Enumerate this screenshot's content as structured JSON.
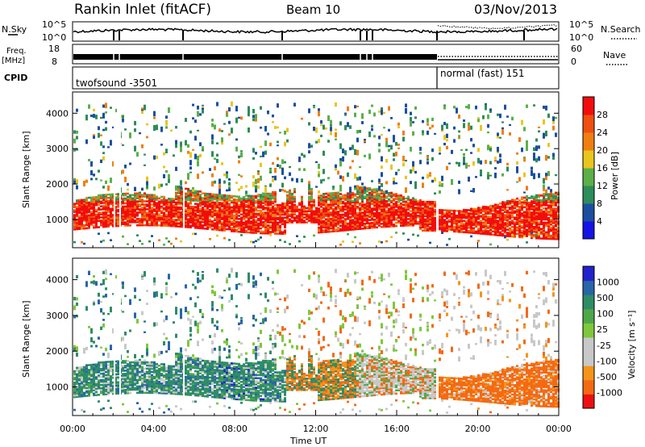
{
  "header": {
    "station": "Rankin Inlet (fitACF)",
    "beam": "Beam 10",
    "date": "03/Nov/2013"
  },
  "top_panels": {
    "nsky_label": "N.Sky",
    "nsky_ticks": [
      "10^5",
      "10^0"
    ],
    "nsearch_label": "N.Search",
    "nsearch_ticks": [
      "10^5",
      "10^0"
    ],
    "freq_label": "Freq.",
    "freq_unit": "[MHz]",
    "freq_ticks": [
      "18",
      "8"
    ],
    "nave_label": "Nave",
    "nave_ticks": [
      "60",
      "0"
    ],
    "cpid_label": "CPID",
    "cpid_left": "twofsound -3501",
    "cpid_right": "normal (fast) 151"
  },
  "colors": {
    "power": [
      "#1414e6",
      "#1c4fa0",
      "#2e8d5a",
      "#5bb04a",
      "#e8c61e",
      "#f07f12",
      "#ef4f10",
      "#f20d0d"
    ],
    "velocity": [
      "#ee1010",
      "#f46a13",
      "#f5941a",
      "#c8c8c8",
      "#c8c8c8",
      "#7fc83a",
      "#4ea84a",
      "#2e8d66",
      "#2866a8",
      "#2222cc"
    ],
    "groundscatter": "#c8c8c8"
  },
  "chart_data": [
    {
      "type": "heatmap",
      "title": "Power",
      "xlabel": "",
      "ylabel": "Slant Range [km]",
      "x_ticks": [
        "00:00",
        "04:00",
        "08:00",
        "12:00",
        "16:00",
        "20:00",
        "00:00"
      ],
      "x_range_hours": [
        0,
        24
      ],
      "y_ticks": [
        1000,
        2000,
        3000,
        4000
      ],
      "ylim": [
        200,
        4600
      ],
      "colorbar": {
        "label": "Power [dB]",
        "ticks": [
          "4",
          "8",
          "12",
          "16",
          "20",
          "24",
          "28"
        ],
        "range": [
          0,
          32
        ]
      },
      "description_values": "Strong red/orange echoes (24-30 dB) between 700-1700 km slant range across most of the day, weaker green/blue scatter from 1800-4300 km"
    },
    {
      "type": "heatmap",
      "title": "Velocity",
      "xlabel": "Time UT",
      "ylabel": "Slant Range [km]",
      "x_ticks": [
        "00:00",
        "04:00",
        "08:00",
        "12:00",
        "16:00",
        "20:00",
        "00:00"
      ],
      "x_range_hours": [
        0,
        24
      ],
      "y_ticks": [
        1000,
        2000,
        3000,
        4000
      ],
      "ylim": [
        200,
        4600
      ],
      "colorbar": {
        "label": "Velocity [m s⁻¹]",
        "ticks": [
          "1000",
          "500",
          "100",
          "25",
          "-25",
          "-100",
          "-500",
          "-1000"
        ]
      },
      "description_values": "Toward-radar green/blue velocities 00-10 UT, grey ground scatter mixed, away-from-radar orange velocities after 12 UT"
    }
  ]
}
